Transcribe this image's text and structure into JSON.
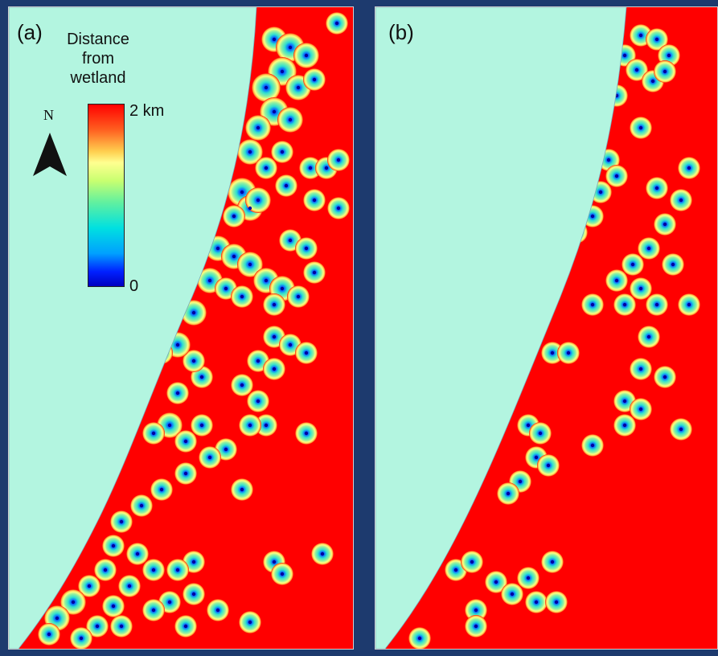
{
  "panels": [
    {
      "label": "(a)"
    },
    {
      "label": "(b)"
    }
  ],
  "legend": {
    "title_lines": [
      "Distance",
      "from",
      "wetland"
    ],
    "max_label": "2 km",
    "min_label": "0"
  },
  "north_arrow": {
    "label": "N"
  },
  "colors": {
    "sea": "#b3f5e0",
    "land_far": "#ff0000",
    "ring_mid": "#ffff80",
    "ring_near": "#30e0d0",
    "wetland": "#0030ff",
    "background": "#1d3a6e"
  }
}
